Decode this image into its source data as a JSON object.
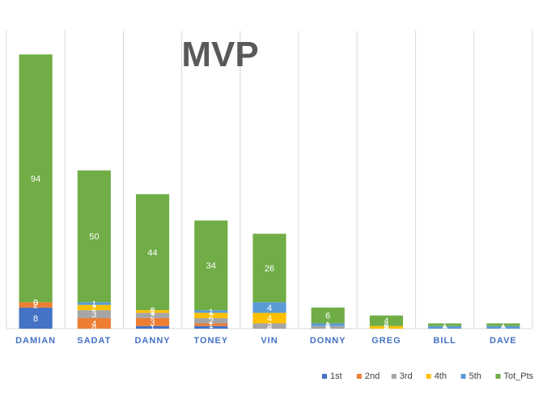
{
  "chart_data": {
    "type": "bar",
    "stacked": true,
    "title": "MVP",
    "xlabel": "",
    "ylabel": "",
    "categories": [
      "DAMIAN",
      "SADAT",
      "DANNY",
      "TONEY",
      "VIN",
      "DONNY",
      "GREG",
      "BILL",
      "DAVE"
    ],
    "ylim": [
      0,
      113
    ],
    "grid": "vertical",
    "legend_position": "bottom-right",
    "series": [
      {
        "name": "1st",
        "color": "#4472C4",
        "values": [
          8,
          0,
          1,
          1,
          0,
          0,
          0,
          0,
          0
        ]
      },
      {
        "name": "2nd",
        "color": "#ED7D31",
        "values": [
          2,
          4,
          3,
          1,
          0,
          0,
          0,
          0,
          0
        ]
      },
      {
        "name": "3rd",
        "color": "#A5A5A5",
        "values": [
          0,
          3,
          2,
          2,
          2,
          1,
          0,
          0,
          0
        ]
      },
      {
        "name": "4th",
        "color": "#FFC000",
        "values": [
          0,
          2,
          1,
          2,
          4,
          0,
          1,
          0,
          0
        ]
      },
      {
        "name": "5th",
        "color": "#5B9BD5",
        "values": [
          0,
          1,
          0,
          1,
          4,
          1,
          0,
          1,
          1
        ]
      },
      {
        "name": "Tot_Pts",
        "color": "#70AD47",
        "values": [
          94,
          50,
          44,
          34,
          26,
          6,
          4,
          1,
          1
        ]
      }
    ]
  }
}
